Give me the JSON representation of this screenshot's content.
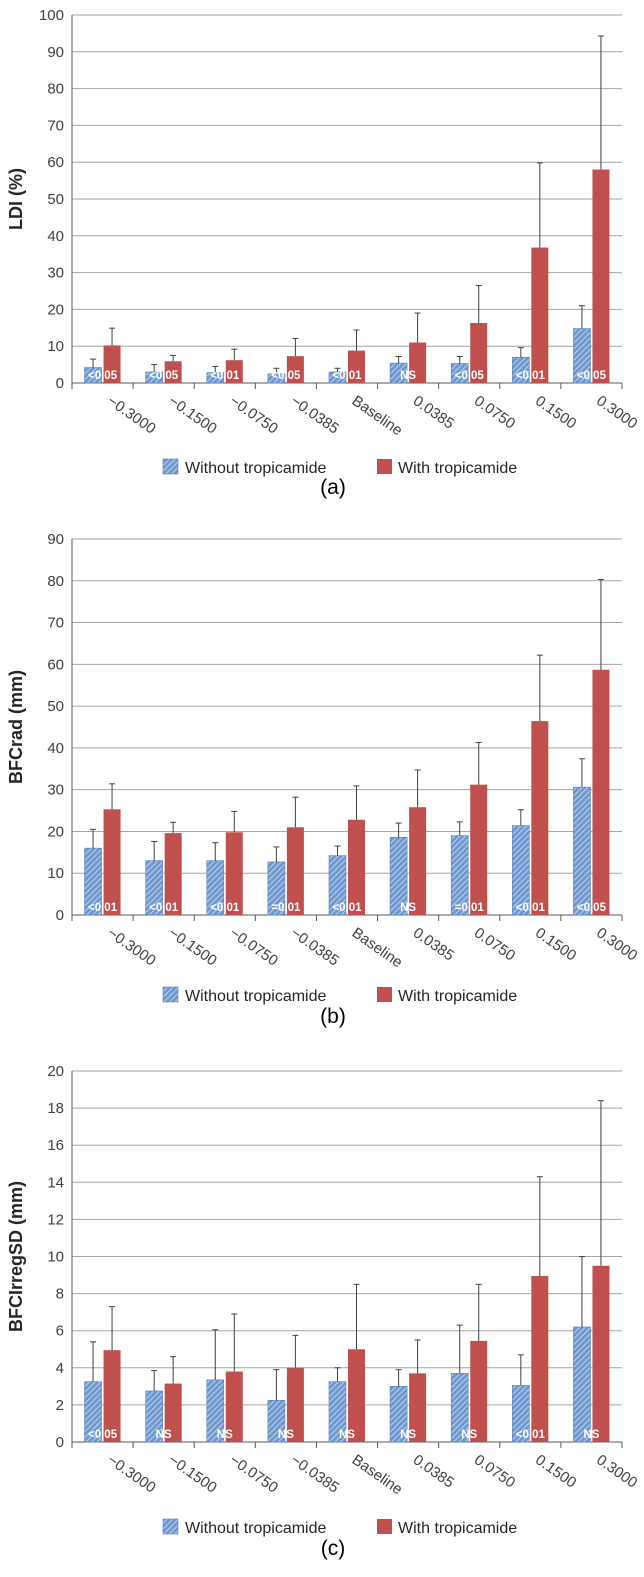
{
  "colors": {
    "without": "#4f81bd",
    "with": "#c0504d",
    "grid": "#a6a6a6",
    "axis": "#595959",
    "text": "#404040"
  },
  "legend": {
    "without": "Without tropicamide",
    "with": "With tropicamide"
  },
  "chart_data": [
    {
      "type": "bar",
      "panel_label": "(a)",
      "categories": [
        "−0.3000",
        "−0.1500",
        "−0.0750",
        "−0.0385",
        "Baseline",
        "0.0385",
        "0.0750",
        "0.1500",
        "0.3000"
      ],
      "ylabel": "LDI (%)",
      "ylim": [
        0,
        100
      ],
      "yticks": [
        0,
        10,
        20,
        30,
        40,
        50,
        60,
        70,
        80,
        90,
        100
      ],
      "grid": true,
      "legend_position": "bottom",
      "series": [
        {
          "name": "Without tropicamide",
          "values": [
            4.2,
            3.0,
            2.8,
            2.5,
            3.0,
            5.4,
            5.3,
            7.0,
            14.8
          ],
          "errors": [
            2.3,
            2.0,
            1.7,
            1.5,
            1.0,
            1.8,
            1.9,
            2.6,
            6.2
          ]
        },
        {
          "name": "With tropicamide",
          "values": [
            10.2,
            5.9,
            6.2,
            7.3,
            8.8,
            11.0,
            16.3,
            36.8,
            58.0
          ],
          "errors": [
            4.7,
            1.6,
            3.0,
            4.8,
            5.6,
            8.0,
            10.2,
            23.0,
            36.3
          ]
        }
      ],
      "annotations": [
        "<0.05",
        "<0.05",
        "<0.01",
        "<0.05",
        "<0.01",
        "NS",
        "<0.05",
        "<0.01",
        "<0.05"
      ]
    },
    {
      "type": "bar",
      "panel_label": "(b)",
      "categories": [
        "−0.3000",
        "−0.1500",
        "−0.0750",
        "−0.0385",
        "Baseline",
        "0.0385",
        "0.0750",
        "0.1500",
        "0.3000"
      ],
      "ylabel": "BFCrad (mm)",
      "ylim": [
        0,
        90
      ],
      "yticks": [
        0,
        10,
        20,
        30,
        40,
        50,
        60,
        70,
        80,
        90
      ],
      "grid": true,
      "legend_position": "bottom",
      "series": [
        {
          "name": "Without tropicamide",
          "values": [
            16.0,
            13.0,
            13.0,
            12.7,
            14.2,
            18.6,
            19.0,
            21.4,
            30.6
          ],
          "errors": [
            4.5,
            4.6,
            4.3,
            3.6,
            2.3,
            3.4,
            3.3,
            3.8,
            6.8
          ]
        },
        {
          "name": "With tropicamide",
          "values": [
            25.3,
            19.6,
            19.8,
            21.0,
            22.8,
            25.8,
            31.2,
            46.4,
            58.7
          ],
          "errors": [
            6.1,
            2.6,
            5.0,
            7.2,
            8.1,
            8.9,
            10.1,
            15.8,
            21.6
          ]
        }
      ],
      "annotations": [
        "<0.01",
        "<0.01",
        "<0.01",
        "=0.01",
        "<0.01",
        "NS",
        "=0.01",
        "<0.01",
        "<0.05"
      ]
    },
    {
      "type": "bar",
      "panel_label": "(c)",
      "categories": [
        "−0.3000",
        "−0.1500",
        "−0.0750",
        "−0.0385",
        "Baseline",
        "0.0385",
        "0.0750",
        "0.1500",
        "0.3000"
      ],
      "ylabel": "BFCIrregSD (mm)",
      "ylim": [
        0,
        20
      ],
      "yticks": [
        0,
        2,
        4,
        6,
        8,
        10,
        12,
        14,
        16,
        18,
        20
      ],
      "grid": true,
      "legend_position": "bottom",
      "series": [
        {
          "name": "Without tropicamide",
          "values": [
            3.25,
            2.75,
            3.35,
            2.25,
            3.25,
            3.0,
            3.7,
            3.05,
            6.2
          ],
          "errors": [
            2.15,
            1.1,
            2.7,
            1.65,
            0.75,
            0.9,
            2.6,
            1.65,
            3.8
          ]
        },
        {
          "name": "With tropicamide",
          "values": [
            4.95,
            3.15,
            3.8,
            4.0,
            5.0,
            3.7,
            5.45,
            8.95,
            9.5
          ],
          "errors": [
            2.35,
            1.45,
            3.1,
            1.75,
            3.5,
            1.8,
            3.05,
            5.35,
            8.9
          ]
        }
      ],
      "annotations": [
        "<0.05",
        "NS",
        "NS",
        "NS",
        "NS",
        "NS",
        "NS",
        "<0.01",
        "NS"
      ]
    }
  ]
}
